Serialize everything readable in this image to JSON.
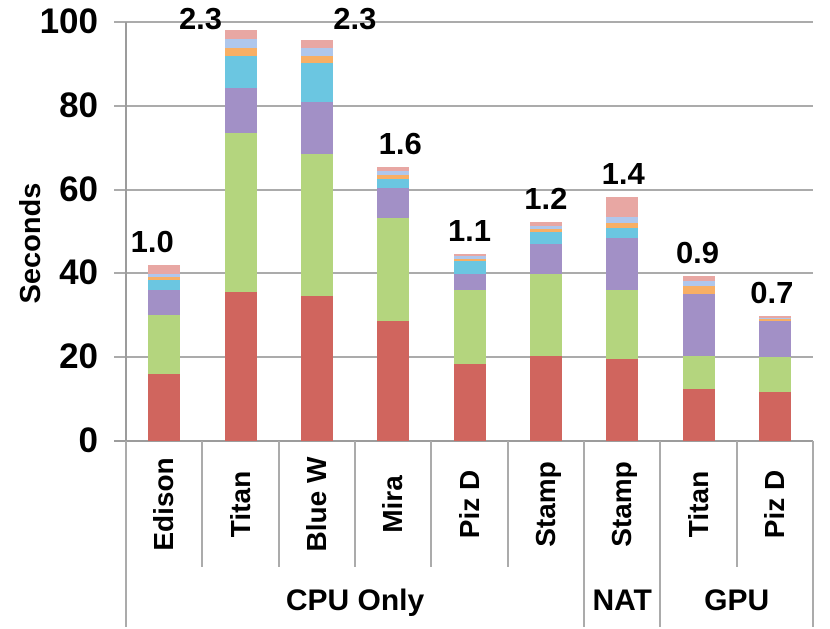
{
  "chart_data": {
    "type": "bar",
    "stacked": true,
    "title": "",
    "ylabel": "Seconds",
    "xlabel": "",
    "ylim": [
      0,
      100
    ],
    "yticks": [
      0,
      20,
      40,
      60,
      80,
      100
    ],
    "grid": true,
    "legend": false,
    "categories": [
      "Edison",
      "Titan",
      "Blue W",
      "Mira",
      "Piz D",
      "Stamp",
      "Stamp",
      "Titan",
      "Piz D"
    ],
    "groups": [
      {
        "label": "CPU Only",
        "span": 6
      },
      {
        "label": "NAT",
        "span": 1
      },
      {
        "label": "GPU",
        "span": 2
      }
    ],
    "bar_value_labels": [
      "1.0",
      "2.3",
      "2.3",
      "1.6",
      "1.1",
      "1.2",
      "1.4",
      "0.9",
      "0.7"
    ],
    "bar_totals": [
      42.1,
      98.1,
      95.8,
      65.4,
      44.7,
      52.2,
      58.3,
      39.3,
      29.8
    ],
    "series": [
      {
        "name": "red",
        "color": "#D0655E",
        "values": [
          15.9,
          35.5,
          34.5,
          28.7,
          18.4,
          20.2,
          19.6,
          12.4,
          11.7
        ]
      },
      {
        "name": "green",
        "color": "#B4D57E",
        "values": [
          14.1,
          37.9,
          33.9,
          24.5,
          17.7,
          19.7,
          16.5,
          8.0,
          8.4
        ]
      },
      {
        "name": "purple",
        "color": "#A290C6",
        "values": [
          6.1,
          10.8,
          12.6,
          7.1,
          3.8,
          7.0,
          12.4,
          14.7,
          8.6
        ]
      },
      {
        "name": "cyan",
        "color": "#6BC6E1",
        "values": [
          2.3,
          7.7,
          9.2,
          2.2,
          3.0,
          2.9,
          2.4,
          0.0,
          0.0
        ]
      },
      {
        "name": "orange",
        "color": "#F8AF65",
        "values": [
          0.8,
          1.9,
          1.8,
          1.0,
          0.6,
          0.8,
          1.1,
          2.0,
          0.5
        ]
      },
      {
        "name": "periwinkle",
        "color": "#AFC7EC",
        "values": [
          0.7,
          2.1,
          1.8,
          0.9,
          0.6,
          0.8,
          1.5,
          1.2,
          0.2
        ]
      },
      {
        "name": "pink",
        "color": "#E8A7A3",
        "values": [
          2.2,
          2.2,
          2.0,
          1.0,
          0.6,
          0.8,
          4.8,
          1.0,
          0.4
        ]
      }
    ],
    "colors": {
      "gridline": "#ABABAB",
      "axis": "#9C9C9C",
      "text": "#000000",
      "background": "#FFFFFF"
    }
  }
}
